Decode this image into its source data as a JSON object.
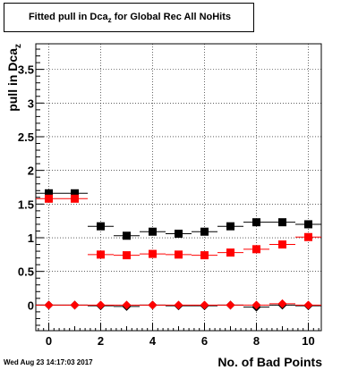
{
  "chart_data": {
    "type": "scatter",
    "title": {
      "main": "Fitted pull in Dca",
      "sub": "z",
      "rest": " for Global Rec All NoHits"
    },
    "xlabel": "No. of Bad Points",
    "ylabel": {
      "main": "pull in Dca",
      "sub": "z"
    },
    "xlim": [
      -0.5,
      10.5
    ],
    "ylim": [
      -0.38,
      3.88
    ],
    "xticks": [
      0,
      2,
      4,
      6,
      8,
      10
    ],
    "yticks": [
      0,
      0.5,
      1,
      1.5,
      2,
      2.5,
      3,
      3.5
    ],
    "grid": true,
    "series": [
      {
        "marker": "square",
        "color": "#000000",
        "x": [
          0,
          1,
          2,
          3,
          4,
          5,
          6,
          7,
          8,
          9,
          10
        ],
        "y": [
          1.66,
          1.66,
          1.17,
          1.03,
          1.09,
          1.06,
          1.09,
          1.17,
          1.23,
          1.23,
          1.2
        ]
      },
      {
        "marker": "square",
        "color": "#ff0000",
        "x": [
          0,
          1,
          2,
          3,
          4,
          5,
          6,
          7,
          8,
          9,
          10
        ],
        "y": [
          1.58,
          1.58,
          0.75,
          0.74,
          0.76,
          0.75,
          0.74,
          0.78,
          0.83,
          0.9,
          1.01
        ]
      },
      {
        "marker": "diamond",
        "color": "#000000",
        "x": [
          0,
          1,
          2,
          3,
          4,
          5,
          6,
          7,
          8,
          9,
          10
        ],
        "y": [
          0.0,
          0.0,
          -0.01,
          -0.02,
          0.0,
          -0.01,
          -0.01,
          0.0,
          -0.03,
          0.0,
          -0.01
        ]
      },
      {
        "marker": "diamond",
        "color": "#ff0000",
        "x": [
          0,
          1,
          2,
          3,
          4,
          5,
          6,
          7,
          8,
          9,
          10
        ],
        "y": [
          0.0,
          0.0,
          0.0,
          0.0,
          0.0,
          0.0,
          0.0,
          0.0,
          0.0,
          0.02,
          0.0
        ]
      }
    ]
  },
  "timestamp": "Wed Aug 23 14:17:03 2017"
}
